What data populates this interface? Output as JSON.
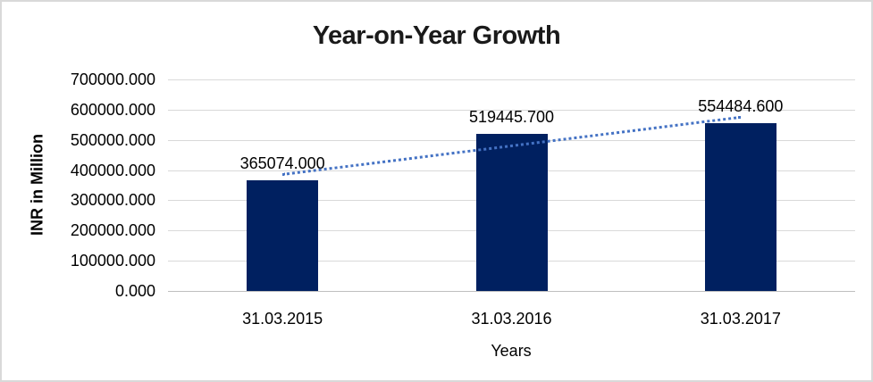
{
  "chart_data": {
    "type": "bar",
    "title": "Year-on-Year Growth",
    "xlabel": "Years",
    "ylabel": "INR in Million",
    "categories": [
      "31.03.2015",
      "31.03.2016",
      "31.03.2017"
    ],
    "values": [
      365074.0,
      519445.7,
      554484.6
    ],
    "data_labels": [
      "365074.000",
      "519445.700",
      "554484.600"
    ],
    "y_tick_values": [
      700000,
      600000,
      500000,
      400000,
      300000,
      200000,
      100000,
      0
    ],
    "y_tick_labels": [
      "700000.000",
      "600000.000",
      "500000.000",
      "400000.000",
      "300000.000",
      "200000.000",
      "100000.000",
      "0.000"
    ],
    "ylim": [
      0,
      700000
    ],
    "grid": "horizontal",
    "legend": "none",
    "bar_color": "#002060",
    "gridline_color": "#d9d9d9",
    "trendline": {
      "type": "linear",
      "style": "dotted",
      "color": "#4472c4",
      "start_value": 384963,
      "end_value": 574373
    }
  },
  "frame": {
    "border_color": "#d9d9d9",
    "background": "#ffffff"
  }
}
